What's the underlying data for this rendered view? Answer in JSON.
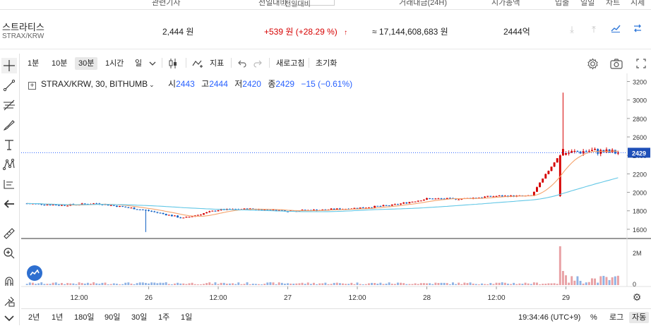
{
  "top_strip": {
    "cols": [
      "관련기사",
      "전일대비",
      "거래대금(24H)",
      "시가총액",
      "입출",
      "일일",
      "차트",
      "시세"
    ],
    "period_select": "전일대비"
  },
  "coin": {
    "name": "스트라티스",
    "symbol": "STRAX/KRW",
    "price": "2,444 원",
    "change": "+539 원 (+28.29 %)",
    "change_arrow": "↑",
    "trade_value": "≈ 17,144,608,683 원",
    "market_cap": "2444억",
    "colors": {
      "up": "#d60000",
      "down": "#1261c4",
      "accent": "#2e77d9"
    }
  },
  "row_icons": [
    "deposit-icon",
    "withdraw-icon",
    "chart-trend-icon",
    "swap-icon"
  ],
  "toolbar": {
    "intervals": [
      "1분",
      "10분",
      "30분",
      "1시간",
      "일"
    ],
    "active_interval": "30분",
    "indicator_label": "지표",
    "refresh_label": "새로고침",
    "reset_label": "초기화"
  },
  "legend": {
    "symbol": "STRAX/KRW, 30, BITHUMB",
    "open_label": "시",
    "open": "2443",
    "high_label": "고",
    "high": "2444",
    "low_label": "저",
    "low": "2420",
    "close_label": "종",
    "close": "2429",
    "change": "−15 (−0.61%)"
  },
  "price_axis": {
    "ticks": [
      "3200",
      "3000",
      "2800",
      "2600",
      "2400",
      "2200",
      "2000",
      "1800",
      "1600"
    ],
    "current": "2429"
  },
  "volume_axis": {
    "ticks": [
      "2M",
      "0"
    ]
  },
  "time_axis": {
    "ticks": [
      "12:00",
      "26",
      "12:00",
      "27",
      "12:00",
      "28",
      "12:00",
      "29"
    ]
  },
  "bottom_bar": {
    "ranges": [
      "2년",
      "1년",
      "180일",
      "90일",
      "30일",
      "1주",
      "1일"
    ],
    "clock": "19:34:46 (UTC+9)",
    "percent_label": "%",
    "log_label": "로그",
    "auto_label": "자동"
  },
  "chart_data": {
    "type": "candlestick",
    "ylim": [
      1500,
      3250
    ],
    "x": [
      "25 06:00",
      "25 12:00",
      "26 00:00",
      "26 12:00",
      "27 00:00",
      "27 12:00",
      "28 00:00",
      "28 12:00",
      "29 00:00"
    ],
    "close_series": [
      {
        "t": "25 03:00",
        "v": 1880
      },
      {
        "t": "25 09:00",
        "v": 1860
      },
      {
        "t": "25 15:00",
        "v": 1880
      },
      {
        "t": "25 21:00",
        "v": 1830
      },
      {
        "t": "26 00:00",
        "v": 1800
      },
      {
        "t": "26 06:00",
        "v": 1720
      },
      {
        "t": "26 12:00",
        "v": 1810
      },
      {
        "t": "26 18:00",
        "v": 1820
      },
      {
        "t": "27 00:00",
        "v": 1800
      },
      {
        "t": "27 06:00",
        "v": 1810
      },
      {
        "t": "27 12:00",
        "v": 1830
      },
      {
        "t": "27 18:00",
        "v": 1860
      },
      {
        "t": "28 00:00",
        "v": 1930
      },
      {
        "t": "28 06:00",
        "v": 1930
      },
      {
        "t": "28 12:00",
        "v": 1960
      },
      {
        "t": "28 18:00",
        "v": 1960
      },
      {
        "t": "28 23:00",
        "v": 2420
      },
      {
        "t": "29 04:00",
        "v": 2450
      },
      {
        "t": "29 09:00",
        "v": 2429
      }
    ],
    "last_price": 2429,
    "high_wick": 3080,
    "volume_max": "2M"
  }
}
